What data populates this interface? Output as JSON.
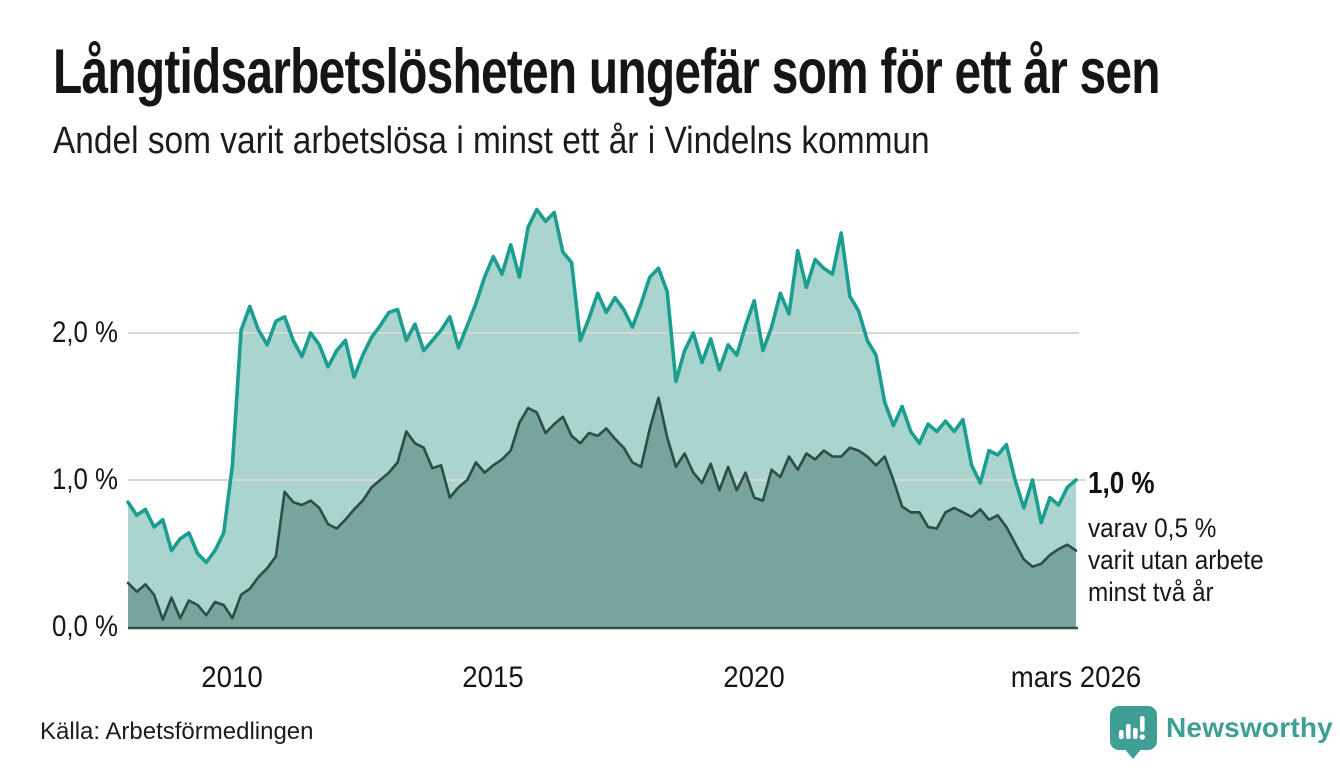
{
  "header": {
    "title": "Långtidsarbetslösheten ungefär som för ett år sen",
    "subtitle": "Andel som varit arbetslösa i minst ett år i Vindelns kommun"
  },
  "axes": {
    "y_ticks": [
      {
        "label": "2,0 %",
        "value": 2
      },
      {
        "label": "1,0 %",
        "value": 1
      },
      {
        "label": "0,0 %",
        "value": 0
      }
    ],
    "x_ticks": [
      {
        "label": "2010",
        "year": 2010
      },
      {
        "label": "2015",
        "year": 2015
      },
      {
        "label": "2020",
        "year": 2020
      },
      {
        "label": "mars 2026",
        "year": 2026.1667
      }
    ]
  },
  "annotation": {
    "value_label": "1,0 %",
    "lines": [
      "varav 0,5 %",
      "varit utan arbete",
      "minst två år"
    ]
  },
  "source": {
    "label": "Källa: Arbetsförmedlingen"
  },
  "branding": {
    "name": "Newsworthy",
    "logo_icon": "newsworthy-speech-bubble-bar-chart-icon",
    "color": "#3f9f93"
  },
  "colors": {
    "background": "#ffffff",
    "text": "#161616",
    "grid": "#d8d8d8",
    "axis_line": "#33504c",
    "series1_line": "#1b9e8f",
    "series1_fill": "#a9d5ce",
    "series2_line": "#2d4d49",
    "series2_fill": "#77a49c"
  },
  "chart_data": {
    "type": "area",
    "title": "Långtidsarbetslösheten ungefär som för ett år sen",
    "subtitle": "Andel som varit arbetslösa i minst ett år i Vindelns kommun",
    "unit": "%",
    "x_start": 2008.0,
    "x_step": 0.1666667,
    "xlim": [
      2008.0,
      2026.1667
    ],
    "ylim": [
      0,
      2.9
    ],
    "grid_values": [
      1,
      2
    ],
    "legend_position": "right-annotation",
    "series": [
      {
        "name": "Andel som varit arbetslösa i minst ett år",
        "line_color": "#1b9e8f",
        "fill_color": "#a9d5ce",
        "last_value": 1.0,
        "last_value_label": "1,0 %",
        "values": [
          0.85,
          0.76,
          0.8,
          0.68,
          0.73,
          0.52,
          0.6,
          0.64,
          0.5,
          0.44,
          0.52,
          0.64,
          1.1,
          2.02,
          2.18,
          2.02,
          1.92,
          2.08,
          2.11,
          1.95,
          1.84,
          2.0,
          1.92,
          1.77,
          1.88,
          1.95,
          1.7,
          1.85,
          1.97,
          2.05,
          2.14,
          2.16,
          1.95,
          2.06,
          1.88,
          1.95,
          2.02,
          2.11,
          1.9,
          2.05,
          2.2,
          2.38,
          2.52,
          2.4,
          2.6,
          2.38,
          2.72,
          2.84,
          2.76,
          2.82,
          2.55,
          2.48,
          1.95,
          2.1,
          2.27,
          2.14,
          2.24,
          2.16,
          2.04,
          2.2,
          2.38,
          2.44,
          2.28,
          1.67,
          1.88,
          2.0,
          1.8,
          1.96,
          1.75,
          1.92,
          1.85,
          2.05,
          2.22,
          1.88,
          2.04,
          2.27,
          2.13,
          2.56,
          2.31,
          2.5,
          2.44,
          2.4,
          2.68,
          2.25,
          2.15,
          1.95,
          1.85,
          1.53,
          1.37,
          1.5,
          1.33,
          1.25,
          1.38,
          1.33,
          1.4,
          1.33,
          1.41,
          1.1,
          0.98,
          1.2,
          1.17,
          1.24,
          1.0,
          0.81,
          1.0,
          0.71,
          0.88,
          0.83,
          0.95,
          1.0
        ]
      },
      {
        "name": "varav varit utan arbete minst två år",
        "line_color": "#2d4d49",
        "fill_color": "#77a49c",
        "last_value": 0.5,
        "last_value_label": "0,5 %",
        "values": [
          0.3,
          0.24,
          0.29,
          0.22,
          0.05,
          0.2,
          0.06,
          0.18,
          0.15,
          0.08,
          0.17,
          0.15,
          0.06,
          0.22,
          0.26,
          0.34,
          0.4,
          0.48,
          0.92,
          0.85,
          0.83,
          0.86,
          0.81,
          0.7,
          0.67,
          0.73,
          0.8,
          0.86,
          0.95,
          1.0,
          1.05,
          1.12,
          1.33,
          1.25,
          1.22,
          1.08,
          1.1,
          0.88,
          0.95,
          1.0,
          1.12,
          1.05,
          1.1,
          1.14,
          1.2,
          1.39,
          1.49,
          1.46,
          1.32,
          1.38,
          1.43,
          1.3,
          1.25,
          1.32,
          1.3,
          1.35,
          1.28,
          1.22,
          1.12,
          1.09,
          1.35,
          1.56,
          1.29,
          1.09,
          1.18,
          1.05,
          0.98,
          1.11,
          0.93,
          1.09,
          0.93,
          1.05,
          0.88,
          0.86,
          1.07,
          1.02,
          1.16,
          1.07,
          1.18,
          1.14,
          1.2,
          1.16,
          1.16,
          1.22,
          1.2,
          1.16,
          1.1,
          1.16,
          1.0,
          0.82,
          0.78,
          0.78,
          0.68,
          0.67,
          0.78,
          0.81,
          0.78,
          0.75,
          0.8,
          0.73,
          0.76,
          0.68,
          0.57,
          0.46,
          0.41,
          0.43,
          0.49,
          0.53,
          0.56,
          0.52
        ]
      }
    ]
  }
}
